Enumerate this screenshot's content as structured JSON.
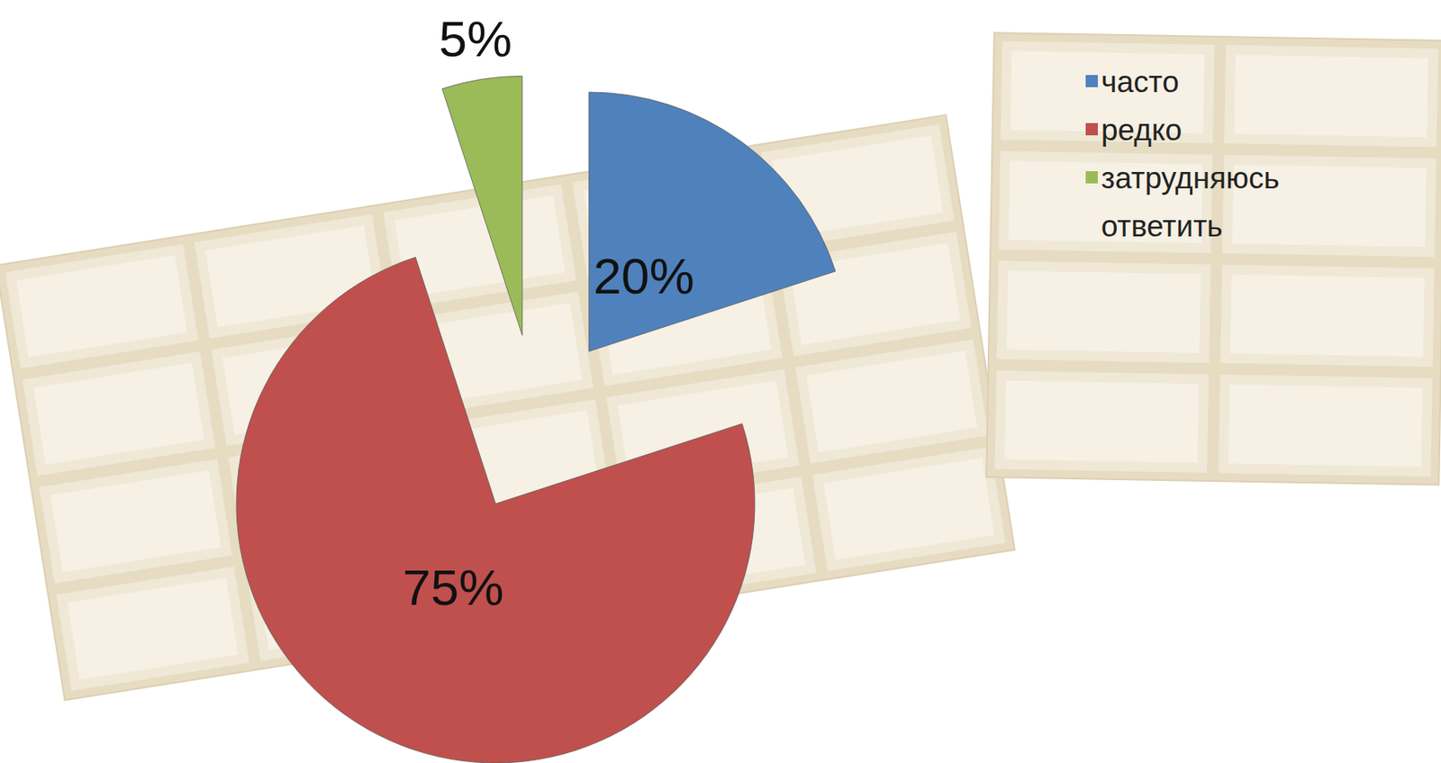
{
  "chart_data": {
    "type": "pie",
    "categories": [
      "часто",
      "редко",
      "затрудняюсь ответить"
    ],
    "values": [
      20,
      75,
      5
    ],
    "value_labels": [
      "20%",
      "75%",
      "5%"
    ],
    "colors": [
      "#4f81bd",
      "#c0504d",
      "#9bbb59"
    ],
    "data_labels": true,
    "legend": "right"
  }
}
